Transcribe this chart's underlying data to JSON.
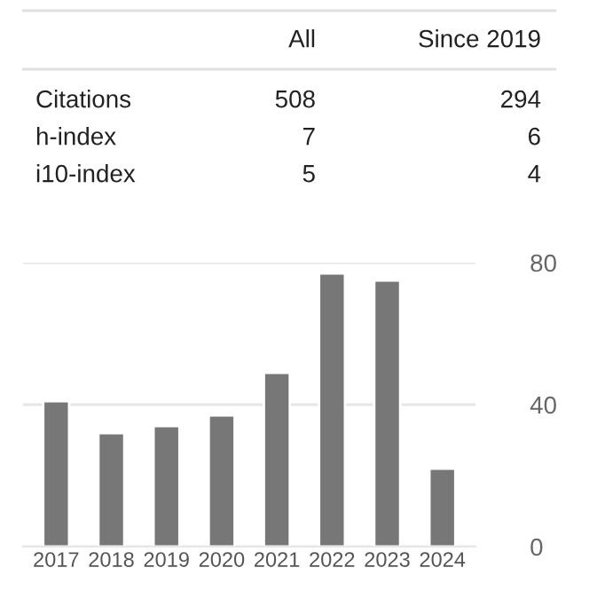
{
  "chart_data": {
    "type": "bar",
    "categories": [
      "2017",
      "2018",
      "2019",
      "2020",
      "2021",
      "2022",
      "2023",
      "2024"
    ],
    "values": [
      41,
      32,
      34,
      37,
      49,
      77,
      75,
      22
    ],
    "color": "#777777",
    "ylim": [
      0,
      80
    ],
    "yticks": [
      0,
      40,
      80
    ],
    "grid": "y",
    "annotations": [
      "All",
      "Since 2019",
      "Citations",
      "508",
      "294",
      "h-index",
      "7",
      "6",
      "i10-index",
      "5",
      "4"
    ]
  }
}
